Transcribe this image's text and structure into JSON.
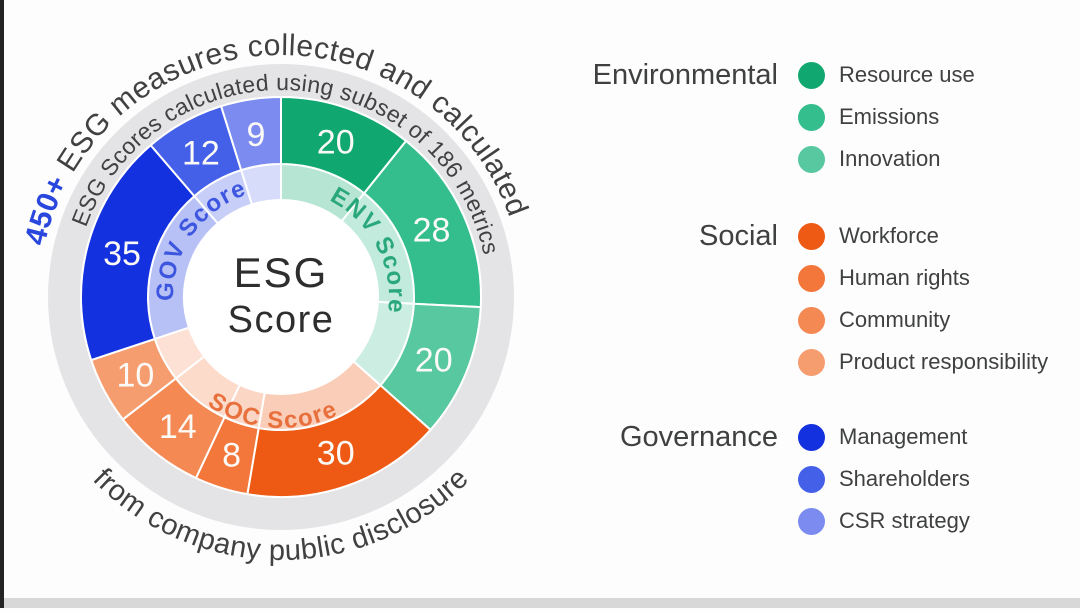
{
  "page": {
    "left_edge_bar_color": "#232323",
    "bottom_bar_color": "#d8d8d8"
  },
  "donut": {
    "center_title_line1": "ESG",
    "center_title_line2": "Score",
    "ring_color": "#e4e4e6",
    "arc_text_outer_top": {
      "highlight": "450+",
      "highlight_color": "#2947dd",
      "rest": "ESG measures collected and calculated"
    },
    "arc_text_ring": "ESG Scores calculated using subset of 186 metrics",
    "arc_text_outer_bottom": "from company public disclosure",
    "group_labels": [
      {
        "text": "ENV Score",
        "color": "#2aa87c"
      },
      {
        "text": "GOV Score",
        "color": "#3d56e0"
      },
      {
        "text": "SOC Score",
        "color": "#e8703d"
      }
    ]
  },
  "chart_data": {
    "type": "pie",
    "subtype": "donut-two-rings",
    "title": "ESG Score",
    "total": 186,
    "start_angle_deg": 0,
    "direction": "clockwise",
    "segments": [
      {
        "label": "Resource use",
        "group": "Environmental",
        "value": 20,
        "color": "#10a870"
      },
      {
        "label": "Emissions",
        "group": "Environmental",
        "value": 28,
        "color": "#34bd8d"
      },
      {
        "label": "Innovation",
        "group": "Environmental",
        "value": 20,
        "color": "#57c8a0"
      },
      {
        "label": "Workforce",
        "group": "Social",
        "value": 30,
        "color": "#ee5a13"
      },
      {
        "label": "Human rights",
        "group": "Social",
        "value": 8,
        "color": "#f3763a"
      },
      {
        "label": "Community",
        "group": "Social",
        "value": 14,
        "color": "#f48953"
      },
      {
        "label": "Product responsibility",
        "group": "Social",
        "value": 10,
        "color": "#f69d70"
      },
      {
        "label": "Management",
        "group": "Governance",
        "value": 35,
        "color": "#1431e0"
      },
      {
        "label": "Shareholders",
        "group": "Governance",
        "value": 12,
        "color": "#4560e8"
      },
      {
        "label": "CSR strategy",
        "group": "Governance",
        "value": 9,
        "color": "#7b8bf0"
      }
    ],
    "annotations": [
      "450+ ESG measures collected and calculated",
      "ESG Scores calculated using subset of 186 metrics",
      "from company public disclosure"
    ]
  },
  "legend": {
    "groups": [
      {
        "title": "Environmental",
        "items": [
          {
            "label": "Resource use",
            "color": "#10a870"
          },
          {
            "label": "Emissions",
            "color": "#34bd8d"
          },
          {
            "label": "Innovation",
            "color": "#57c8a0"
          }
        ]
      },
      {
        "title": "Social",
        "items": [
          {
            "label": "Workforce",
            "color": "#ee5a13"
          },
          {
            "label": "Human rights",
            "color": "#f3763a"
          },
          {
            "label": "Community",
            "color": "#f48953"
          },
          {
            "label": "Product responsibility",
            "color": "#f69d70"
          }
        ]
      },
      {
        "title": "Governance",
        "items": [
          {
            "label": "Management",
            "color": "#1431e0"
          },
          {
            "label": "Shareholders",
            "color": "#4560e8"
          },
          {
            "label": "CSR strategy",
            "color": "#7b8bf0"
          }
        ]
      }
    ]
  }
}
